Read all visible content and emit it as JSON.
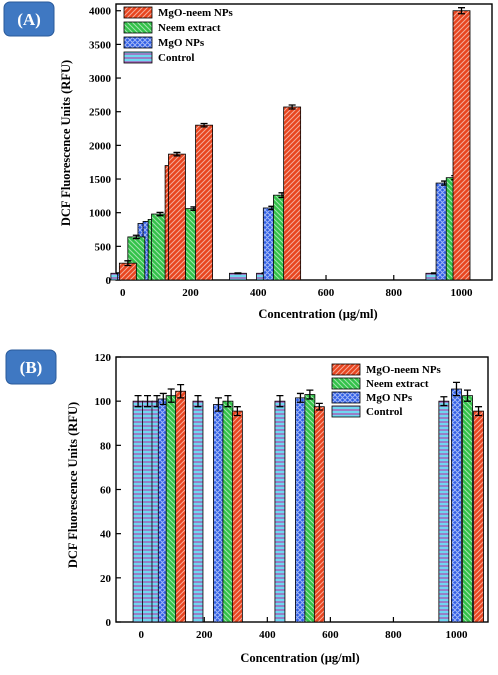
{
  "colors": {
    "mgo_neem": "#e8451f",
    "neem": "#33c24a",
    "mgo": "#2f5ee6",
    "control": "#6fd8f0",
    "badge": "#3f78c2"
  },
  "chart_data": [
    {
      "type": "bar",
      "panel_label": "(A)",
      "xlabel": "Concentration (µg/ml)",
      "ylabel": "DCF Fluorescence Units (RFU)",
      "xlim": [
        -20,
        1090
      ],
      "ylim": [
        0,
        4100
      ],
      "xticks": [
        0,
        200,
        400,
        600,
        800,
        1000
      ],
      "yticks": [
        0,
        500,
        1000,
        1500,
        2000,
        2500,
        3000,
        3500,
        4000
      ],
      "legend_position": "top-left",
      "series": [
        {
          "name": "MgO-neem NPs",
          "key": "mgo_neem",
          "pattern": "diag",
          "x": [
            15,
            150,
            160,
            240,
            500,
            1000
          ],
          "values": [
            250,
            1700,
            1870,
            2300,
            2570,
            4000
          ],
          "errors": [
            35,
            30,
            25,
            25,
            30,
            45
          ]
        },
        {
          "name": "Neem extract",
          "key": "neem",
          "pattern": "diag-rev",
          "x": [
            40,
            100,
            110,
            210,
            470,
            980
          ],
          "values": [
            640,
            900,
            980,
            1060,
            1260,
            1520
          ],
          "errors": [
            25,
            30,
            25,
            25,
            35,
            30
          ]
        },
        {
          "name": "MgO NPs",
          "key": "mgo",
          "pattern": "cross",
          "x": [
            10,
            70,
            85,
            180,
            440,
            950
          ],
          "values": [
            100,
            840,
            870,
            920,
            1070,
            1440
          ],
          "errors": [
            20,
            25,
            25,
            25,
            25,
            30
          ]
        },
        {
          "name": "Control",
          "key": "control",
          "pattern": "horiz",
          "x": [
            -10,
            110,
            130,
            340,
            420,
            920
          ],
          "values": [
            100,
            100,
            100,
            100,
            100,
            100
          ],
          "errors": [
            5,
            5,
            5,
            5,
            5,
            5
          ]
        }
      ]
    },
    {
      "type": "bar",
      "panel_label": "(B)",
      "xlabel": "Concentration (µg/ml)",
      "ylabel": "DCF Fluorescence Units (RFU)",
      "xlim": [
        -80,
        1100
      ],
      "ylim": [
        0,
        120
      ],
      "xticks": [
        0,
        200,
        400,
        600,
        800,
        1000
      ],
      "yticks": [
        0,
        20,
        40,
        60,
        80,
        100,
        120
      ],
      "legend_position": "top-right",
      "series": [
        {
          "name": "MgO-neem NPs",
          "key": "mgo_neem",
          "pattern": "diag",
          "x": [
            125,
            305,
            565,
            1070
          ],
          "values": [
            104.5,
            95.5,
            97.5,
            95.5
          ],
          "errors": [
            3,
            2,
            1.5,
            2
          ]
        },
        {
          "name": "Neem extract",
          "key": "neem",
          "pattern": "diag-rev",
          "x": [
            95,
            275,
            535,
            1035
          ],
          "values": [
            102.5,
            100,
            103,
            102.5
          ],
          "errors": [
            3,
            2.5,
            2,
            2.5
          ]
        },
        {
          "name": "MgO NPs",
          "key": "mgo",
          "pattern": "cross",
          "x": [
            70,
            245,
            505,
            1000
          ],
          "values": [
            101,
            98.5,
            101.5,
            105.5
          ],
          "errors": [
            2.5,
            3,
            2,
            3
          ]
        },
        {
          "name": "Control",
          "key": "control",
          "pattern": "horiz",
          "x": [
            -10,
            20,
            50,
            180,
            440,
            960
          ],
          "values": [
            100,
            100,
            100,
            100,
            100,
            100
          ],
          "errors": [
            2.5,
            2.5,
            2.5,
            2.5,
            2.5,
            2
          ]
        }
      ]
    }
  ]
}
